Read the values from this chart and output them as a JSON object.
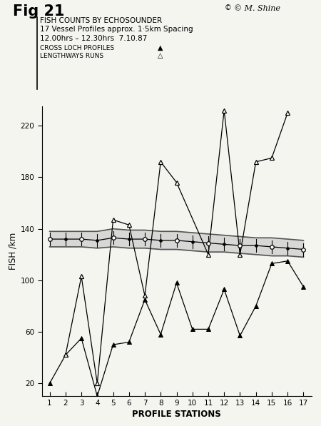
{
  "title": "Fig 21",
  "subtitle1": "FISH COUNTS BY ECHOSOUNDER",
  "subtitle2": "17 Vessel Profiles approx. 1·5km Spacing",
  "subtitle3": "12.00hrs – 12.30hrs  7.10.87",
  "legend1_label": "CROSS LOCH PROFILES",
  "legend2_label": "LENGTHWAYS RUNS",
  "xlabel": "PROFILE STATIONS",
  "ylabel": "FISH /km",
  "signature": "© M. Shine",
  "xlim": [
    0.5,
    17.5
  ],
  "ylim": [
    10,
    235
  ],
  "yticks": [
    20,
    60,
    100,
    140,
    180,
    220
  ],
  "xticks": [
    1,
    2,
    3,
    4,
    5,
    6,
    7,
    8,
    9,
    10,
    11,
    12,
    13,
    14,
    15,
    16,
    17
  ],
  "cross_x": [
    1,
    2,
    3,
    4,
    5,
    6,
    7,
    8,
    9,
    10,
    11,
    12,
    13,
    14,
    15,
    16,
    17
  ],
  "cross_y": [
    20,
    42,
    55,
    10,
    50,
    52,
    85,
    58,
    98,
    62,
    62,
    93,
    57,
    80,
    113,
    115,
    95
  ],
  "length_x": [
    2,
    3,
    4,
    5,
    6,
    7,
    8,
    9,
    11,
    12,
    13,
    14,
    15,
    16
  ],
  "length_y": [
    42,
    103,
    20,
    147,
    143,
    88,
    192,
    176,
    120,
    232,
    120,
    192,
    195,
    230
  ],
  "env_x": [
    1,
    2,
    3,
    4,
    5,
    6,
    7,
    8,
    9,
    10,
    11,
    12,
    13,
    14,
    15,
    16,
    17
  ],
  "env_upper": [
    138,
    138,
    138,
    138,
    140,
    139,
    139,
    138,
    138,
    137,
    136,
    135,
    134,
    133,
    133,
    132,
    131
  ],
  "env_lower": [
    126,
    126,
    126,
    125,
    126,
    125,
    125,
    124,
    124,
    123,
    122,
    122,
    121,
    120,
    119,
    119,
    118
  ],
  "mean_y": [
    132,
    132,
    132,
    131,
    133,
    132,
    132,
    131,
    131,
    130,
    129,
    128,
    127,
    127,
    126,
    125,
    124
  ],
  "black": "#000000",
  "white": "#ffffff",
  "bg": "#f5f5f0"
}
